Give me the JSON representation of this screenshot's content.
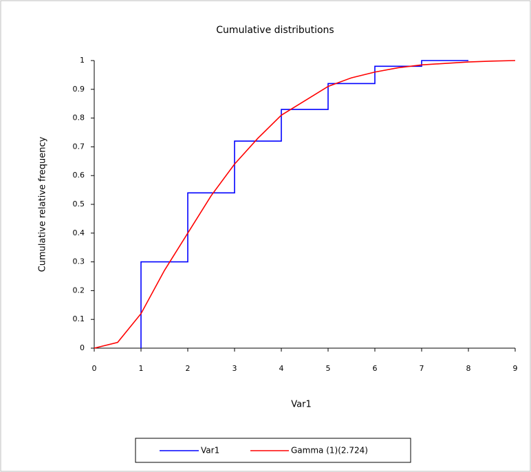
{
  "chart_data": {
    "type": "line",
    "title": "Cumulative distributions",
    "x_label": "Var1",
    "y_label": "Cumulative relative frequency",
    "xlim": [
      0,
      9
    ],
    "xticks": [
      0,
      1,
      2,
      3,
      4,
      5,
      6,
      7,
      8,
      9
    ],
    "ylim": [
      0,
      1
    ],
    "yticks": [
      0,
      0.1,
      0.2,
      0.3,
      0.4,
      0.5,
      0.6,
      0.7,
      0.8,
      0.9,
      1
    ],
    "legend": "bottom",
    "series": [
      {
        "name": "Var1",
        "color": "#0000ff",
        "x": [
          1,
          1,
          2,
          2,
          3,
          3,
          4,
          4,
          5,
          5,
          6,
          6,
          7,
          7,
          8
        ],
        "values": [
          0,
          0.3,
          0.3,
          0.54,
          0.54,
          0.72,
          0.72,
          0.83,
          0.83,
          0.92,
          0.92,
          0.98,
          0.98,
          1,
          1
        ]
      },
      {
        "name": "Gamma (1)(2.724)",
        "color": "#ff0000",
        "x": [
          0,
          0.5,
          1,
          1.5,
          2,
          2.5,
          3,
          3.5,
          4,
          4.5,
          5,
          5.5,
          6,
          6.5,
          7,
          7.5,
          8,
          8.5,
          9
        ],
        "values": [
          0,
          0.02,
          0.12,
          0.27,
          0.4,
          0.53,
          0.64,
          0.73,
          0.81,
          0.86,
          0.91,
          0.94,
          0.96,
          0.975,
          0.985,
          0.99,
          0.995,
          0.998,
          1
        ]
      }
    ]
  }
}
